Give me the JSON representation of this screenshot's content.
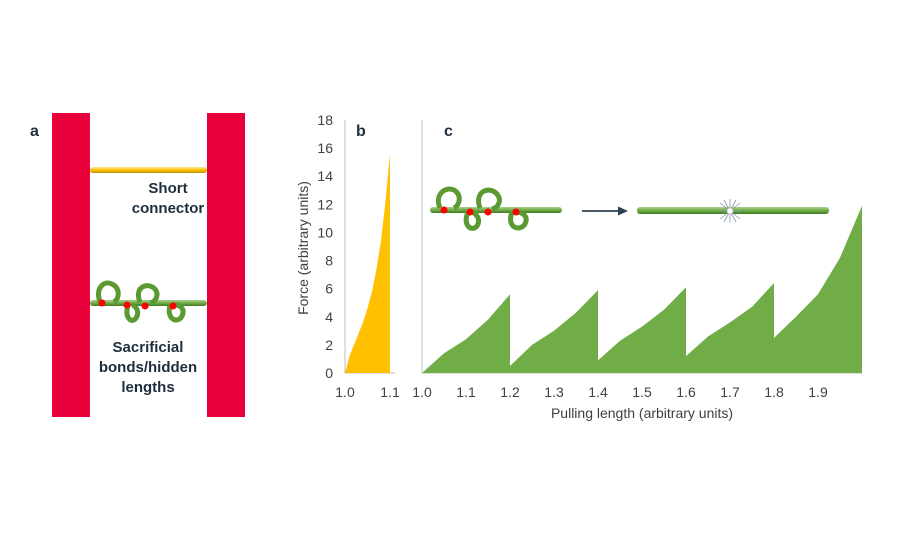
{
  "panel_a": {
    "label": "a",
    "connector_label_1": "Short",
    "connector_label_2": "connector",
    "sacrificial_label_1": "Sacrificial",
    "sacrificial_label_2": "bonds/hidden",
    "sacrificial_label_3": "lengths",
    "pillar_color": "#e8003a",
    "connector_color": "#ffc000",
    "chain_color": "#70ad47",
    "bond_color": "#ff0000"
  },
  "panel_b": {
    "label": "b",
    "fill_color": "#ffc000"
  },
  "panel_c": {
    "label": "c",
    "fill_color": "#70ad47"
  },
  "axes": {
    "ylabel": "Force (arbitrary units)",
    "xlabel": "Pulling length (arbitrary units)",
    "yticks": [
      "0",
      "2",
      "4",
      "6",
      "8",
      "10",
      "12",
      "14",
      "16",
      "18"
    ],
    "b_xticks": [
      "1.0",
      "1.1"
    ],
    "c_xticks": [
      "1.0",
      "1.1",
      "1.2",
      "1.3",
      "1.4",
      "1.5",
      "1.6",
      "1.7",
      "1.8",
      "1.9"
    ]
  },
  "chart_data": [
    {
      "type": "area",
      "panel": "b",
      "xlim": [
        1.0,
        1.1
      ],
      "ylim": [
        0,
        18
      ],
      "x": [
        1.0,
        1.01,
        1.02,
        1.03,
        1.04,
        1.05,
        1.06,
        1.07,
        1.08,
        1.09,
        1.1
      ],
      "y": [
        0,
        1.2,
        2.0,
        2.8,
        3.6,
        4.6,
        5.8,
        7.4,
        9.4,
        12.2,
        15.6
      ]
    },
    {
      "type": "area",
      "panel": "c",
      "xlim": [
        1.0,
        2.0
      ],
      "ylim": [
        0,
        18
      ],
      "x": [
        1.0,
        1.05,
        1.1,
        1.15,
        1.2,
        1.2,
        1.25,
        1.3,
        1.35,
        1.4,
        1.4,
        1.45,
        1.5,
        1.55,
        1.6,
        1.6,
        1.65,
        1.7,
        1.75,
        1.8,
        1.8,
        1.85,
        1.9,
        1.95,
        2.0
      ],
      "y": [
        0,
        1.4,
        2.4,
        3.8,
        5.6,
        0.5,
        2.0,
        3.0,
        4.3,
        5.9,
        0.9,
        2.3,
        3.3,
        4.5,
        6.1,
        1.2,
        2.6,
        3.6,
        4.7,
        6.4,
        2.5,
        4.0,
        5.6,
        8.2,
        11.9
      ]
    }
  ]
}
